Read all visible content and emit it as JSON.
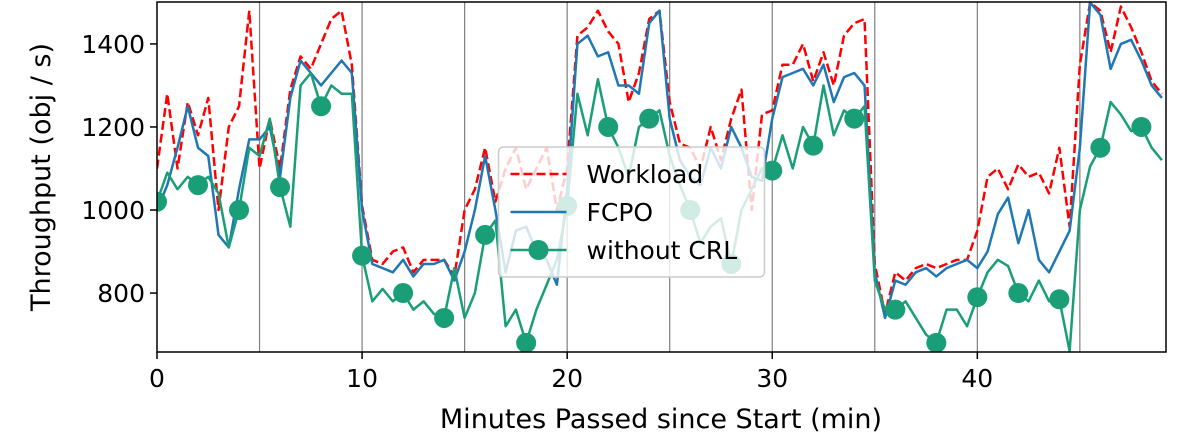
{
  "chart_data": {
    "type": "line",
    "xlabel": "Minutes Passed since Start (min)",
    "ylabel": "Throughput (obj / s)",
    "x": [
      0,
      0.5,
      1,
      1.5,
      2,
      2.5,
      3,
      3.5,
      4,
      4.5,
      5,
      5.5,
      6,
      6.5,
      7,
      7.5,
      8,
      8.5,
      9,
      9.5,
      10,
      10.5,
      11,
      11.5,
      12,
      12.5,
      13,
      13.5,
      14,
      14.5,
      15,
      15.5,
      16,
      16.5,
      17,
      17.5,
      18,
      18.5,
      19,
      19.5,
      20,
      20.5,
      21,
      21.5,
      22,
      22.5,
      23,
      23.5,
      24,
      24.5,
      25,
      25.5,
      26,
      26.5,
      27,
      27.5,
      28,
      28.5,
      29,
      29.5,
      30,
      30.5,
      31,
      31.5,
      32,
      32.5,
      33,
      33.5,
      34,
      34.5,
      35,
      35.5,
      36,
      36.5,
      37,
      37.5,
      38,
      38.5,
      39,
      39.5,
      40,
      40.5,
      41,
      41.5,
      42,
      42.5,
      43,
      43.5,
      44,
      44.5,
      45,
      45.5,
      46,
      46.5,
      47,
      47.5,
      48,
      48.5,
      49
    ],
    "series": [
      {
        "name": "Workload",
        "color": "#ff0000",
        "dashed": true,
        "marker": false,
        "values": [
          1100,
          1280,
          1100,
          1260,
          1180,
          1270,
          1000,
          1200,
          1250,
          1480,
          1100,
          1220,
          1100,
          1290,
          1370,
          1340,
          1400,
          1460,
          1480,
          1350,
          1010,
          880,
          870,
          900,
          910,
          850,
          880,
          880,
          880,
          840,
          1000,
          1050,
          1150,
          1020,
          1100,
          1150,
          1050,
          1100,
          1150,
          1000,
          1100,
          1420,
          1440,
          1480,
          1430,
          1400,
          1260,
          1330,
          1460,
          1480,
          1260,
          1160,
          1150,
          1100,
          1200,
          1120,
          1220,
          1290,
          1000,
          1230,
          1240,
          1350,
          1350,
          1400,
          1310,
          1380,
          1300,
          1420,
          1450,
          1460,
          870,
          750,
          850,
          830,
          860,
          870,
          860,
          870,
          880,
          880,
          950,
          1080,
          1100,
          1050,
          1110,
          1080,
          1090,
          1040,
          1150,
          960,
          1350,
          1500,
          1480,
          1380,
          1490,
          1440,
          1380,
          1310,
          1280
        ]
      },
      {
        "name": "FCPO",
        "color": "#1f77b4",
        "dashed": false,
        "marker": false,
        "values": [
          1000,
          1060,
          1150,
          1250,
          1150,
          1130,
          940,
          910,
          1050,
          1170,
          1170,
          1200,
          1080,
          1270,
          1360,
          1330,
          1300,
          1330,
          1360,
          1330,
          1000,
          870,
          860,
          850,
          880,
          840,
          870,
          870,
          880,
          830,
          900,
          1000,
          1130,
          1000,
          850,
          950,
          960,
          900,
          880,
          820,
          1050,
          1400,
          1420,
          1370,
          1380,
          1300,
          1300,
          1280,
          1450,
          1480,
          1220,
          1120,
          1080,
          1060,
          1150,
          1100,
          1200,
          1150,
          1080,
          1070,
          1220,
          1320,
          1330,
          1340,
          1300,
          1350,
          1260,
          1320,
          1330,
          1300,
          850,
          740,
          830,
          820,
          850,
          860,
          840,
          860,
          870,
          880,
          860,
          900,
          990,
          1030,
          920,
          1000,
          880,
          850,
          900,
          950,
          1150,
          1500,
          1470,
          1340,
          1400,
          1410,
          1360,
          1300,
          1270
        ]
      },
      {
        "name": "without CRL",
        "color": "#1a9e77",
        "dashed": false,
        "marker": true,
        "values": [
          1020,
          1090,
          1050,
          1080,
          1060,
          1080,
          1040,
          910,
          1000,
          1150,
          1130,
          1220,
          1055,
          960,
          1300,
          1330,
          1250,
          1300,
          1280,
          1280,
          890,
          780,
          810,
          780,
          800,
          760,
          780,
          750,
          740,
          860,
          740,
          800,
          940,
          975,
          720,
          760,
          680,
          760,
          820,
          880,
          1010,
          1280,
          1180,
          1315,
          1200,
          1150,
          1080,
          1200,
          1220,
          1240,
          1130,
          1060,
          1000,
          920,
          960,
          980,
          870,
          1000,
          1050,
          1100,
          1095,
          1180,
          1100,
          1200,
          1155,
          1300,
          1180,
          1240,
          1220,
          1250,
          830,
          760,
          760,
          780,
          740,
          700,
          680,
          760,
          760,
          720,
          790,
          850,
          880,
          865,
          800,
          780,
          830,
          780,
          785,
          660,
          1000,
          1105,
          1150,
          1260,
          1230,
          1190,
          1200,
          1150,
          1120
        ]
      }
    ],
    "markevery": 4,
    "vlines": [
      5,
      10,
      15,
      20,
      25,
      30,
      35,
      40,
      45
    ],
    "xlim": [
      0,
      49.2
    ],
    "ylim": [
      658,
      1501
    ],
    "xticks": [
      0,
      10,
      20,
      30,
      40
    ],
    "yticks": [
      800,
      1000,
      1200,
      1400
    ],
    "legend": "center"
  }
}
